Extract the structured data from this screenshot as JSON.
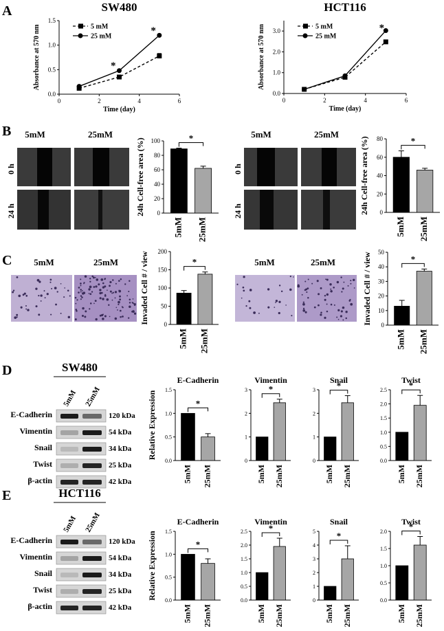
{
  "panel_labels": [
    "A",
    "B",
    "C",
    "D",
    "E"
  ],
  "panelA": {
    "charts": [
      {
        "type": "line",
        "title": "SW480",
        "xlabel": "Time (day)",
        "ylabel": "Absorbance at 570 nm",
        "xlim": [
          0,
          6
        ],
        "ylim": [
          0,
          1.5
        ],
        "xticks": [
          "0",
          "2",
          "4",
          "6"
        ],
        "yticks": [
          "0.0",
          "0.5",
          "1.0",
          "1.5"
        ],
        "x": [
          1,
          3,
          5
        ],
        "series": [
          {
            "name": "5 mM",
            "values": [
              0.12,
              0.35,
              0.78
            ],
            "err": [
              0.02,
              0.03,
              0.05
            ],
            "marker": "square",
            "dash": true
          },
          {
            "name": "25 mM",
            "values": [
              0.16,
              0.48,
              1.2
            ],
            "err": [
              0.01,
              0.02,
              0.02
            ],
            "marker": "circle",
            "dash": false
          }
        ],
        "sig_x": [
          2.7,
          4.7
        ],
        "sig_y": [
          0.6,
          1.32
        ]
      },
      {
        "type": "line",
        "title": "HCT116",
        "xlabel": "Time (day)",
        "ylabel": "Absorbance at  570 nm",
        "xlim": [
          0,
          6
        ],
        "ylim": [
          0,
          3.5
        ],
        "xticks": [
          "0",
          "2",
          "4",
          "6"
        ],
        "yticks": [
          "0.0",
          "1.0",
          "2.0",
          "3.0"
        ],
        "x": [
          1,
          3,
          5
        ],
        "series": [
          {
            "name": "5 mM",
            "values": [
              0.2,
              0.78,
              2.48
            ],
            "err": [
              0.02,
              0.03,
              0.05
            ],
            "marker": "square",
            "dash": true
          },
          {
            "name": "25 mM",
            "values": [
              0.2,
              0.85,
              3.02
            ],
            "err": [
              0.02,
              0.03,
              0.03
            ],
            "marker": "circle",
            "dash": false
          }
        ],
        "sig_x": [
          4.8
        ],
        "sig_y": [
          3.2
        ]
      }
    ]
  },
  "panelB": {
    "image_labels": {
      "col1": "5mM",
      "col2": "25mM",
      "row1": "0 h",
      "row2": "24 h"
    },
    "charts": [
      {
        "type": "bar",
        "categories": [
          "5mM",
          "25mM"
        ],
        "values": [
          89,
          62
        ],
        "err": [
          1,
          3
        ],
        "ylabel": "24h Cell-free area (%)",
        "ylim": [
          0,
          100
        ],
        "yticks": [
          "0",
          "20",
          "40",
          "60",
          "80",
          "100"
        ],
        "sig": "*"
      },
      {
        "type": "bar",
        "categories": [
          "5mM",
          "25mM"
        ],
        "values": [
          60,
          46
        ],
        "err": [
          7,
          2
        ],
        "ylabel": "24h Cell-free area (%)",
        "ylim": [
          0,
          80
        ],
        "yticks": [
          "0",
          "20",
          "40",
          "60",
          "80"
        ],
        "sig": "*"
      }
    ]
  },
  "panelC": {
    "image_labels": {
      "col1": "5mM",
      "col2": "25mM"
    },
    "charts": [
      {
        "type": "bar",
        "categories": [
          "5mM",
          "25mM"
        ],
        "values": [
          86,
          138
        ],
        "err": [
          7,
          6
        ],
        "ylabel": "Invaded Cell # / view",
        "ylim": [
          0,
          200
        ],
        "yticks": [
          "0",
          "50",
          "100",
          "150",
          "200"
        ],
        "sig": "*"
      },
      {
        "type": "bar",
        "categories": [
          "5mM",
          "25mM"
        ],
        "values": [
          13,
          37
        ],
        "err": [
          4,
          1.5
        ],
        "ylabel": "Invaded Cell # / view",
        "ylim": [
          0,
          50
        ],
        "yticks": [
          "0",
          "10",
          "20",
          "30",
          "40",
          "50"
        ],
        "sig": "*"
      }
    ]
  },
  "panelD": {
    "blot_title": "SW480",
    "lanes": [
      "5mM",
      "25mM"
    ],
    "proteins": [
      "E-Cadherin",
      "Vimentin",
      "Snail",
      "Twist",
      "β-actin"
    ],
    "sizes": [
      "120 kDa",
      "54 kDa",
      "34 kDa",
      "25 kDa",
      "42 kDa"
    ],
    "ylabel": "Relative Expression",
    "charts": [
      {
        "type": "bar",
        "title": "E-Cadherin",
        "categories": [
          "5mM",
          "25mM"
        ],
        "values": [
          1.0,
          0.5
        ],
        "err": [
          0,
          0.07
        ],
        "ylim": [
          0,
          1.5
        ],
        "yticks": [
          "0.0",
          "0.5",
          "1.0",
          "1.5"
        ],
        "sig": "*"
      },
      {
        "type": "bar",
        "title": "Vimentin",
        "categories": [
          "5mM",
          "25mM"
        ],
        "values": [
          1.0,
          2.45
        ],
        "err": [
          0,
          0.15
        ],
        "ylim": [
          0,
          3
        ],
        "yticks": [
          "0",
          "1",
          "2",
          "3"
        ],
        "sig": "*"
      },
      {
        "type": "bar",
        "title": "Snail",
        "categories": [
          "5mM",
          "25mM"
        ],
        "values": [
          1.0,
          2.45
        ],
        "err": [
          0,
          0.3
        ],
        "ylim": [
          0,
          3
        ],
        "yticks": [
          "0",
          "1",
          "2",
          "3"
        ],
        "sig": "*"
      },
      {
        "type": "bar",
        "title": "Twist",
        "categories": [
          "5mM",
          "25mM"
        ],
        "values": [
          1.0,
          1.95
        ],
        "err": [
          0,
          0.35
        ],
        "ylim": [
          0,
          2.5
        ],
        "yticks": [
          "0.0",
          "0.5",
          "1.0",
          "1.5",
          "2.0",
          "2.5"
        ],
        "sig": "*"
      }
    ]
  },
  "panelE": {
    "blot_title": "HCT116",
    "lanes": [
      "5mM",
      "25mM"
    ],
    "proteins": [
      "E-Cadherin",
      "Vimentin",
      "Snail",
      "Twist",
      "β-actin"
    ],
    "sizes": [
      "120 kDa",
      "54 kDa",
      "34 kDa",
      "25 kDa",
      "42 kDa"
    ],
    "ylabel": "Relative Expression",
    "charts": [
      {
        "type": "bar",
        "title": "E-Cadherin",
        "categories": [
          "5mM",
          "25mM"
        ],
        "values": [
          1.0,
          0.8
        ],
        "err": [
          0,
          0.1
        ],
        "ylim": [
          0,
          1.5
        ],
        "yticks": [
          "0.0",
          "0.5",
          "1.0",
          "1.5"
        ],
        "sig": "*"
      },
      {
        "type": "bar",
        "title": "Vimentin",
        "categories": [
          "5mM",
          "25mM"
        ],
        "values": [
          1.0,
          1.95
        ],
        "err": [
          0,
          0.3
        ],
        "ylim": [
          0,
          2.5
        ],
        "yticks": [
          "0.0",
          "0.5",
          "1.0",
          "1.5",
          "2.0",
          "2.5"
        ],
        "sig": "*"
      },
      {
        "type": "bar",
        "title": "Snail",
        "categories": [
          "5mM",
          "25mM"
        ],
        "values": [
          1.0,
          3.0
        ],
        "err": [
          0,
          0.95
        ],
        "ylim": [
          0,
          5
        ],
        "yticks": [
          "0",
          "1",
          "2",
          "3",
          "4",
          "5"
        ],
        "sig": "*"
      },
      {
        "type": "bar",
        "title": "Twist",
        "categories": [
          "5mM",
          "25mM"
        ],
        "values": [
          1.0,
          1.6
        ],
        "err": [
          0,
          0.25
        ],
        "ylim": [
          0,
          2.0
        ],
        "yticks": [
          "0.0",
          "0.5",
          "1.0",
          "1.5",
          "2.0"
        ],
        "sig": "*"
      }
    ]
  },
  "colors": {
    "black": "#000000",
    "gray": "#a6a6a6",
    "stain": "#b9a6cf",
    "stain_dark": "#a48fc0"
  }
}
